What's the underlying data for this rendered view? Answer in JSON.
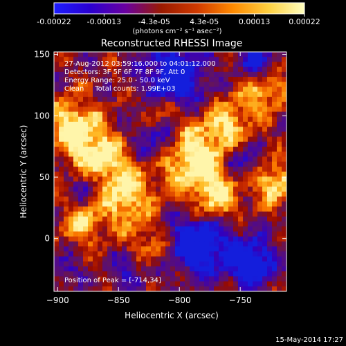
{
  "chart_data": {
    "type": "heatmap",
    "title": "Reconstructed RHESSI Image",
    "colorbar": {
      "tick_labels": [
        "-0.00022",
        "-0.00013",
        "-4.3e-05",
        "4.3e-05",
        "0.00013",
        "0.00022"
      ],
      "range": [
        -0.00022,
        0.00022
      ],
      "units": "(photons cm⁻² s⁻¹ asec⁻²)",
      "colors": [
        "#1d1dff",
        "#2a00d0",
        "#6a00a0",
        "#9a1a00",
        "#d03a00",
        "#ff8a00",
        "#ffd040",
        "#ffffc0"
      ]
    },
    "xlabel": "Heliocentric X (arcsec)",
    "ylabel": "Heliocentric Y (arcsec)",
    "xlim": [
      -903,
      -712
    ],
    "ylim": [
      -43,
      152
    ],
    "x_ticks": [
      {
        "value": -900,
        "label": "−900"
      },
      {
        "value": -850,
        "label": "−850"
      },
      {
        "value": -800,
        "label": "−800"
      },
      {
        "value": -750,
        "label": "−750"
      }
    ],
    "y_ticks": [
      {
        "value": 0,
        "label": "0"
      },
      {
        "value": 50,
        "label": "50"
      },
      {
        "value": 100,
        "label": "100"
      },
      {
        "value": 150,
        "label": "150"
      }
    ],
    "annotations": [
      "27-Aug-2012 03:59:16.000 to 04:01:12.000",
      "Detectors: 3F 5F 6F 7F 8F 9F, Att 0",
      "Energy Range: 25.0 - 50.0 keV",
      "Clean     Total counts: 1.99E+03"
    ],
    "peak_text": "Position of Peak = [-714,34]",
    "footer_date": "15-May-2014 17:27"
  }
}
